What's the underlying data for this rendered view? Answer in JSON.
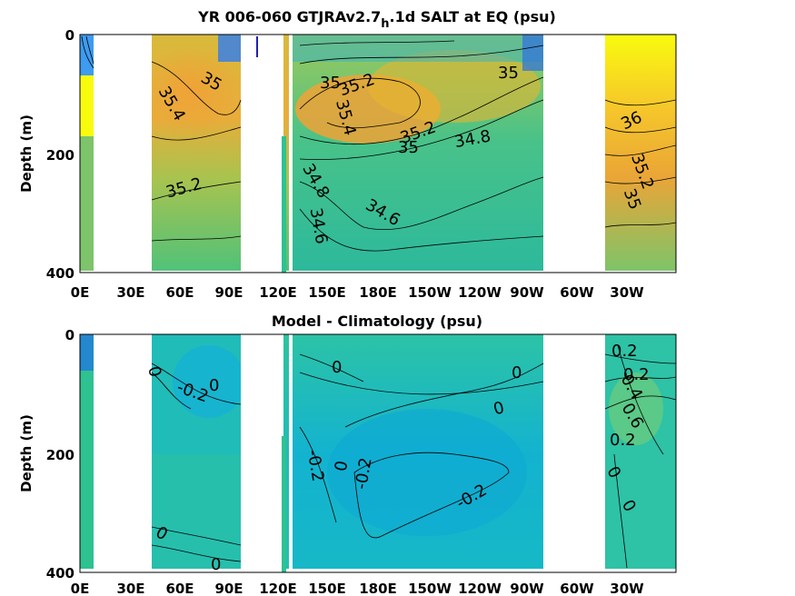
{
  "chart_data": [
    {
      "type": "heatmap",
      "variant": "contour",
      "title_main": "YR 006-060 GTJRAv2.7",
      "title_sub": "h",
      "title_tail": ".1d SALT at EQ (psu)",
      "ylabel": "Depth (m)",
      "ylim": [
        0,
        400
      ],
      "y_reversed": true,
      "xticks": [
        "0E",
        "30E",
        "60E",
        "90E",
        "120E",
        "150E",
        "180E",
        "150W",
        "120W",
        "90W",
        "60W",
        "30W"
      ],
      "yticks": [
        "0",
        "200",
        "400"
      ],
      "colormap": [
        "#3e26a8",
        "#2f8bfe",
        "#1ab2d6",
        "#2ec291",
        "#9ec85a",
        "#e6b52f",
        "#f9d426",
        "#f9fb0e"
      ],
      "contour_labels": [
        "35",
        "35.4",
        "35.2",
        "35",
        "35.4",
        "35.2",
        "35",
        "34.8",
        "35.2",
        "34.8",
        "34.6",
        "34.6",
        "35",
        "36",
        "35.2",
        "35"
      ]
    },
    {
      "type": "heatmap",
      "variant": "contour",
      "title": "Model - Climatology (psu)",
      "ylabel": "Depth (m)",
      "ylim": [
        0,
        400
      ],
      "y_reversed": true,
      "xticks": [
        "0E",
        "30E",
        "60E",
        "90E",
        "120E",
        "150E",
        "180E",
        "150W",
        "120W",
        "90W",
        "60W",
        "30W"
      ],
      "yticks": [
        "0",
        "200",
        "400"
      ],
      "colormap": [
        "#3e26a8",
        "#2f8bfe",
        "#1ab2d6",
        "#2ec291",
        "#9ec85a",
        "#e6b52f",
        "#f9d426",
        "#f9fb0e"
      ],
      "contour_labels": [
        "0",
        "-0.2",
        "0",
        "0",
        "0",
        "0",
        "-0.2",
        "-0.2",
        "0",
        "0",
        "0",
        "-0.2",
        "0.2",
        "0.2",
        "0.4",
        "0.6",
        "0.2",
        "0",
        "0"
      ]
    }
  ]
}
